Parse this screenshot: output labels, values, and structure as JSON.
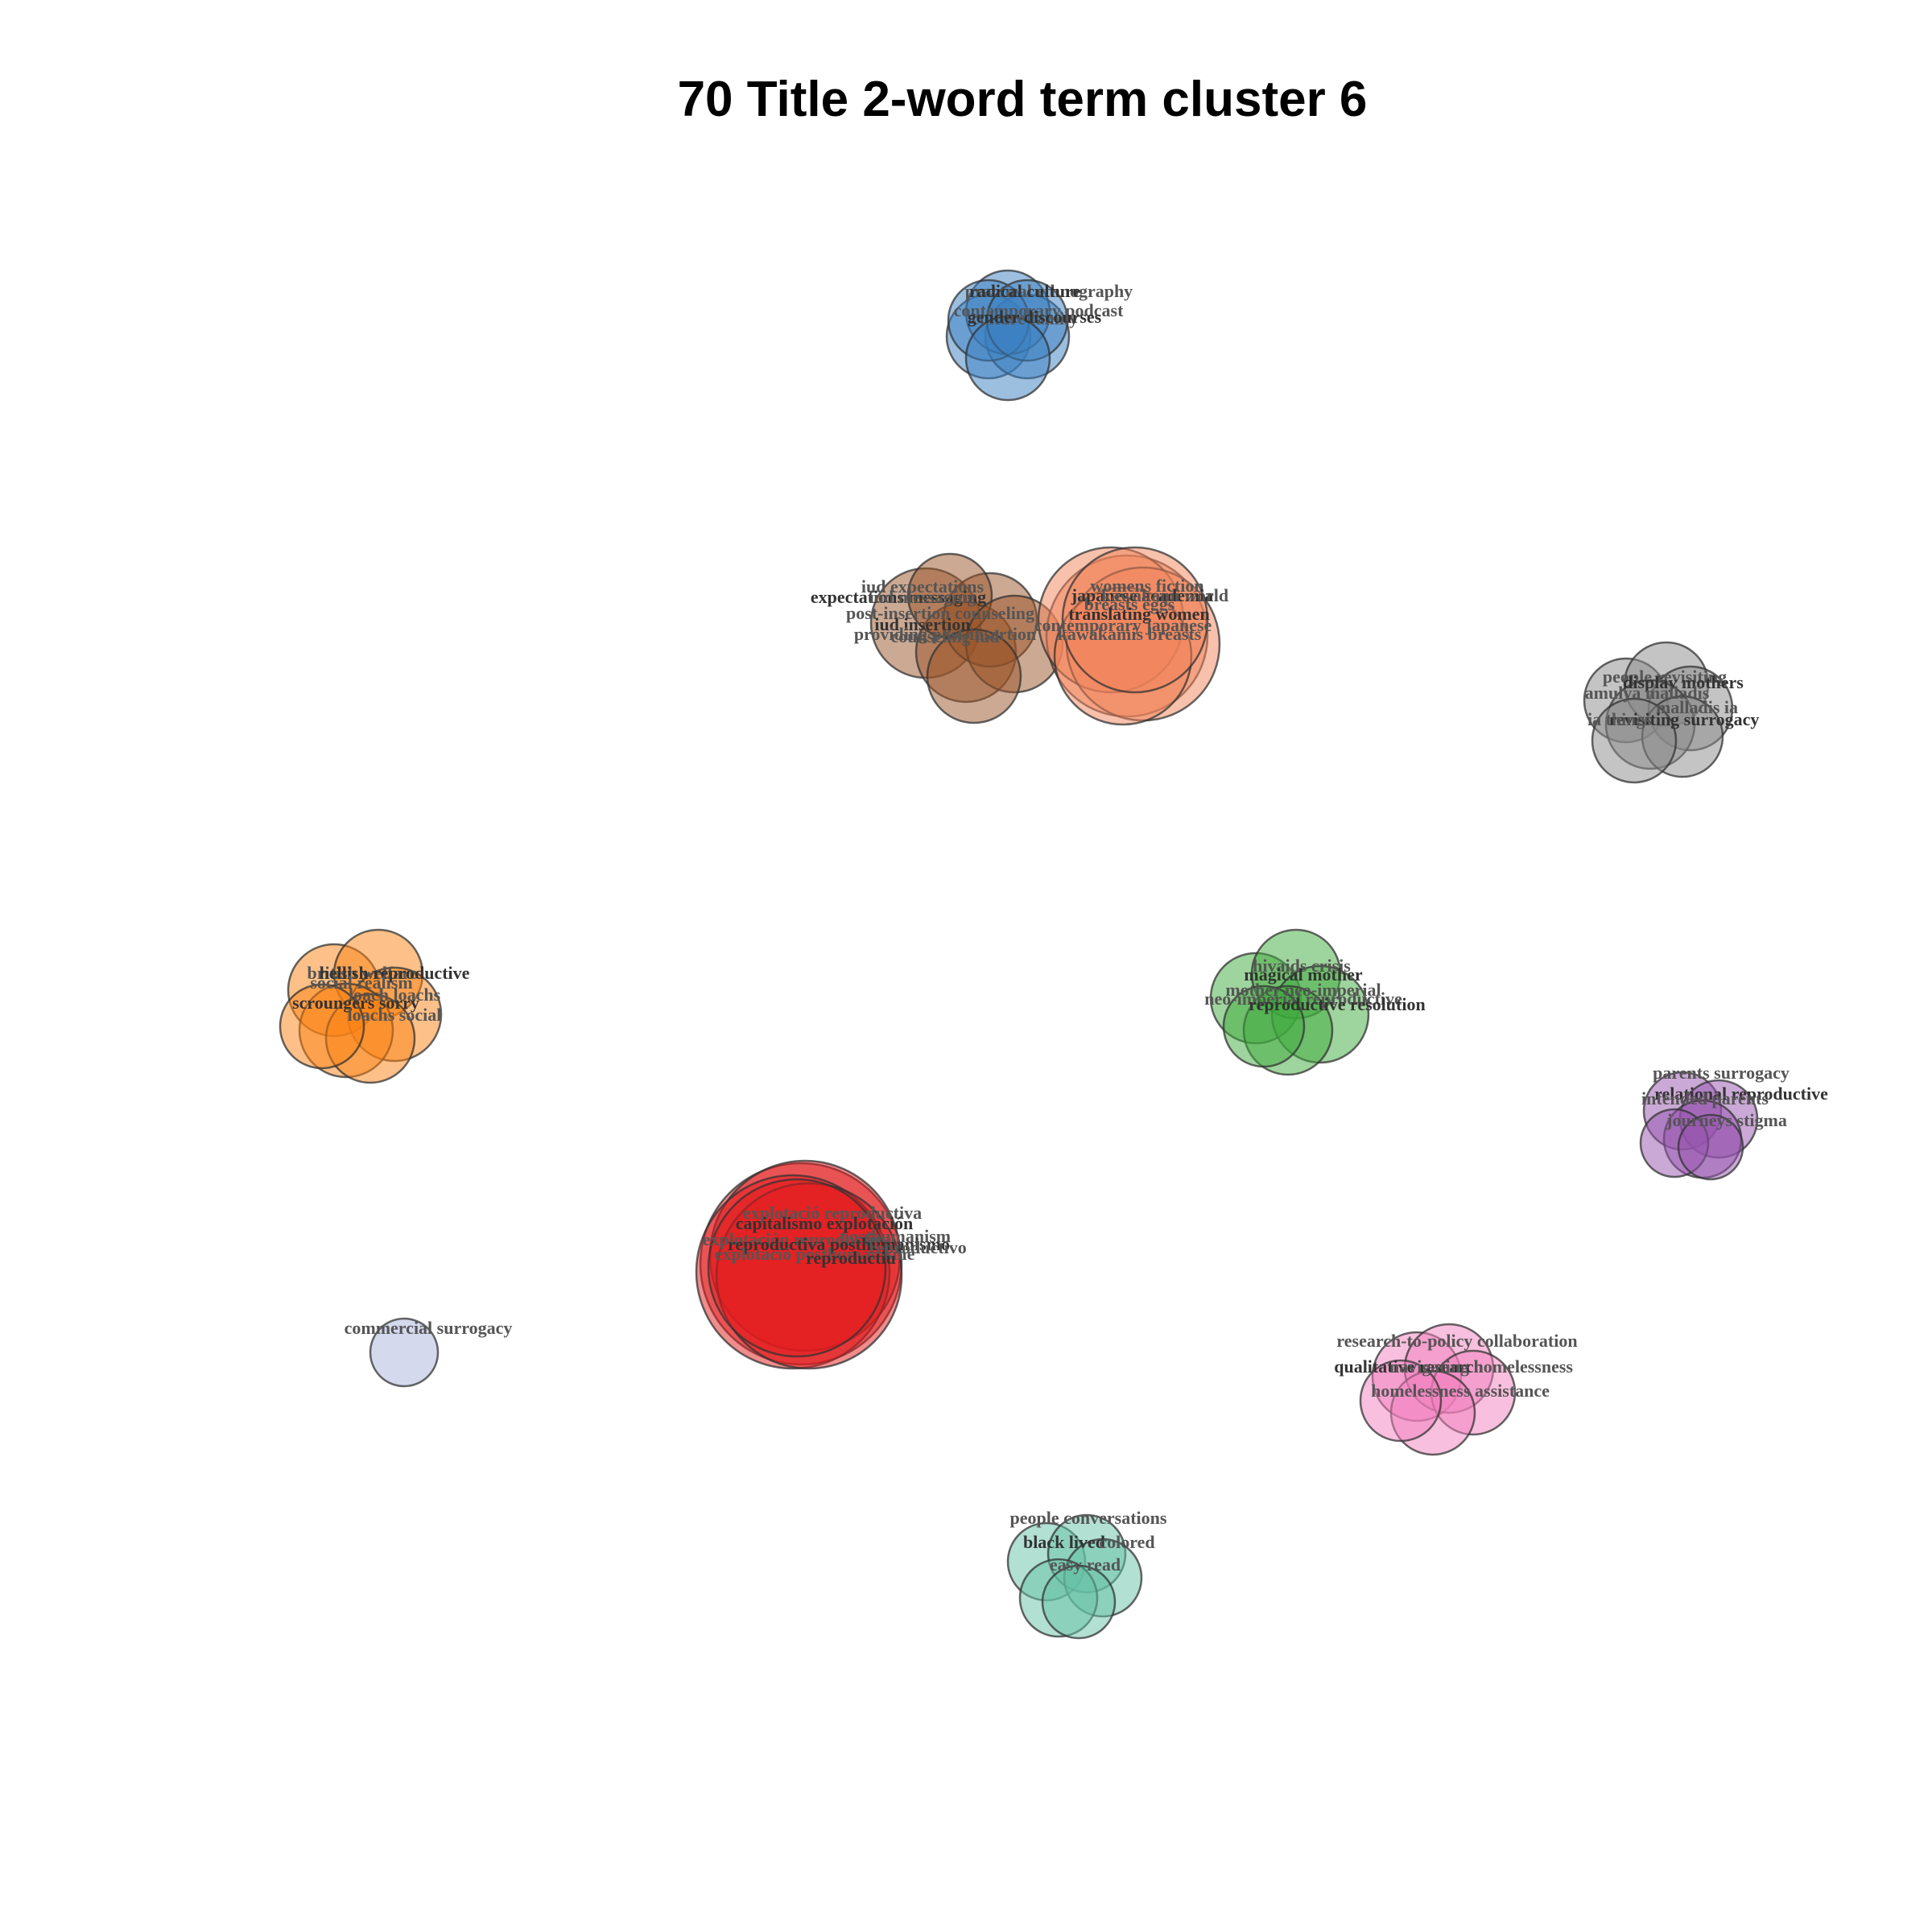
{
  "title": "70 Title 2-word term cluster 6",
  "clusters": [
    {
      "id": "blue",
      "color": "#3a7fc2",
      "labels": [
        "practical ethnography",
        "radical culture",
        "contemporary podcast",
        "culture family",
        "gender discourses"
      ]
    },
    {
      "id": "brown",
      "color": "#9a5327",
      "labels": [
        "iud expectations",
        "expectations messaging",
        "iud messaging",
        "post-insertion counseling",
        "iud insertion",
        "counseling iud",
        "providing post-insertion"
      ]
    },
    {
      "id": "salmon",
      "color": "#f2845a",
      "labels": [
        "womens fiction",
        "japanese academia",
        "kawakami world",
        "breasts eggs",
        "translating women",
        "contemporary japanese",
        "kawakamis breasts"
      ]
    },
    {
      "id": "gray",
      "color": "#8a8a8a",
      "labels": [
        "people revisiting",
        "display mothers",
        "amulya malladis",
        "malladis ia",
        "revisiting surrogacy",
        "ia things"
      ]
    },
    {
      "id": "orange",
      "color": "#fb8111",
      "labels": [
        "british welfare",
        "hellish reproductive",
        "social realism",
        "loach loachs",
        "scroungers sorry",
        "loachs social"
      ]
    },
    {
      "id": "green",
      "color": "#3da93c",
      "labels": [
        "hivaids crisis",
        "magical mother",
        "mother neo-imperial",
        "neo-imperial reproductive",
        "reproductive resolution"
      ]
    },
    {
      "id": "purple",
      "color": "#9553ad",
      "labels": [
        "parents surrogacy",
        "relational reproductive",
        "intended parents",
        "journeys stigma"
      ]
    },
    {
      "id": "red",
      "color": "#e41a1c",
      "labels": [
        "explotació reproductiva",
        "capitalismo explotación",
        "explotación reproductiva",
        "posthumanism",
        "reproductiva posthumanismo",
        "reproductivo",
        "explotació posthumanisme",
        "reproductiu"
      ]
    },
    {
      "id": "lavender",
      "color": "#a9b4dc",
      "labels": [
        "commercial surrogacy"
      ]
    },
    {
      "id": "pink",
      "color": "#f17fbe",
      "labels": [
        "research-to-policy collaboration",
        "qualitative research",
        "navigating homelessness",
        "homelessness assistance"
      ]
    },
    {
      "id": "teal",
      "color": "#66c2a5",
      "labels": [
        "people conversations",
        "black lived",
        "colored",
        "easy read"
      ]
    }
  ]
}
